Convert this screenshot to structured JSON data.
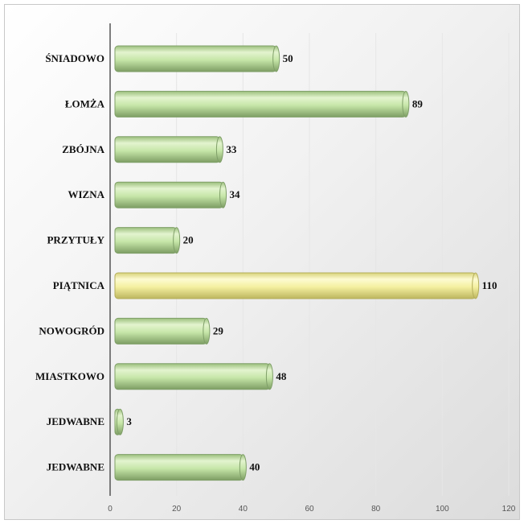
{
  "chart_data": {
    "type": "bar",
    "orientation": "horizontal",
    "categories": [
      "ŚNIADOWO",
      "ŁOMŻA",
      "ZBÓJNA",
      "WIZNA",
      "PRZYTUŁY",
      "PIĄTNICA",
      "NOWOGRÓD",
      "MIASTKOWO",
      "JEDWABNE",
      "JEDWABNE"
    ],
    "values": [
      50,
      89,
      33,
      34,
      20,
      110,
      29,
      48,
      3,
      40
    ],
    "highlight_index": 5,
    "xlim": [
      0,
      120
    ],
    "xticks": [
      0,
      20,
      40,
      60,
      80,
      100,
      120
    ],
    "data_labels": true,
    "grid": true,
    "legend": false,
    "colors": {
      "bar": "#c6e6a8",
      "bar_edge": "#7f9f68",
      "highlight": "#f4f0a0",
      "highlight_edge": "#b3ad5a",
      "grid": "#e6e6e6",
      "axis": "#555555"
    }
  }
}
